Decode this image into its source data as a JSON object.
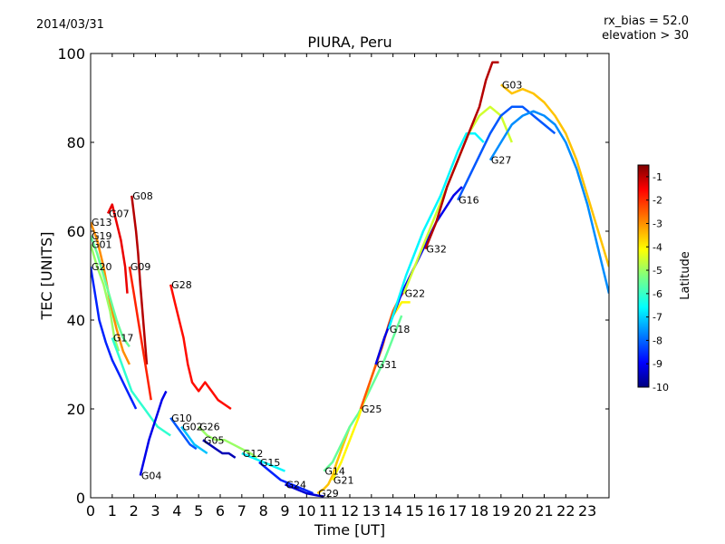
{
  "chart_data": {
    "type": "line",
    "title": "PIURA, Peru",
    "date": "2014/03/31",
    "annotation_lines": [
      "rx_bias = 52.0",
      "elevation > 30"
    ],
    "xlabel": "Time [UT]",
    "ylabel": "TEC [UNITS]",
    "xlim": [
      0,
      24
    ],
    "ylim": [
      0,
      100
    ],
    "x_ticks": [
      0,
      1,
      2,
      3,
      4,
      5,
      6,
      7,
      8,
      9,
      10,
      11,
      12,
      13,
      14,
      15,
      16,
      17,
      18,
      19,
      20,
      21,
      22,
      23
    ],
    "y_ticks": [
      0,
      20,
      40,
      60,
      80,
      100
    ],
    "grid": false,
    "colorbar": {
      "label": "Latitude",
      "min": -10,
      "max": -0.5,
      "ticks": [
        -1,
        -2,
        -3,
        -4,
        -5,
        -6,
        -7,
        -8,
        -9,
        -10
      ]
    },
    "series": [
      {
        "name": "G13",
        "lat": -3.0,
        "points": [
          [
            0.0,
            62
          ],
          [
            0.3,
            58
          ],
          [
            0.6,
            52
          ],
          [
            0.9,
            44
          ],
          [
            1.2,
            38
          ],
          [
            1.5,
            33
          ],
          [
            1.8,
            30
          ]
        ]
      },
      {
        "name": "G07",
        "lat": -1.5,
        "points": [
          [
            0.8,
            64
          ],
          [
            1.0,
            66
          ],
          [
            1.2,
            62
          ],
          [
            1.4,
            58
          ],
          [
            1.6,
            52
          ],
          [
            1.7,
            46
          ]
        ]
      },
      {
        "name": "G08",
        "lat": -1.0,
        "points": [
          [
            1.9,
            68
          ],
          [
            2.0,
            64
          ],
          [
            2.1,
            60
          ],
          [
            2.2,
            55
          ],
          [
            2.3,
            48
          ],
          [
            2.4,
            42
          ],
          [
            2.5,
            36
          ],
          [
            2.6,
            30
          ]
        ]
      },
      {
        "name": "G19",
        "lat": -5.5,
        "points": [
          [
            0.0,
            59
          ],
          [
            0.3,
            55
          ],
          [
            0.6,
            50
          ],
          [
            0.9,
            45
          ],
          [
            1.2,
            40
          ],
          [
            1.5,
            36
          ],
          [
            1.8,
            34
          ]
        ]
      },
      {
        "name": "G01",
        "lat": -5.0,
        "points": [
          [
            0.0,
            57
          ],
          [
            0.3,
            52
          ],
          [
            0.6,
            48
          ],
          [
            0.9,
            42
          ],
          [
            1.1,
            36
          ],
          [
            1.3,
            33
          ]
        ]
      },
      {
        "name": "G20",
        "lat": -8.5,
        "points": [
          [
            0.0,
            52
          ],
          [
            0.2,
            46
          ],
          [
            0.4,
            40
          ],
          [
            0.7,
            35
          ],
          [
            1.0,
            31
          ],
          [
            1.3,
            28
          ],
          [
            1.6,
            25
          ],
          [
            1.9,
            22
          ],
          [
            2.1,
            20
          ]
        ]
      },
      {
        "name": "G09",
        "lat": -2.0,
        "points": [
          [
            1.8,
            52
          ],
          [
            2.0,
            46
          ],
          [
            2.2,
            40
          ],
          [
            2.4,
            34
          ],
          [
            2.6,
            28
          ],
          [
            2.8,
            22
          ]
        ]
      },
      {
        "name": "G28",
        "lat": -1.8,
        "points": [
          [
            3.7,
            48
          ],
          [
            3.9,
            44
          ],
          [
            4.1,
            40
          ],
          [
            4.3,
            36
          ],
          [
            4.5,
            30
          ],
          [
            4.7,
            26
          ],
          [
            5.0,
            24
          ],
          [
            5.3,
            26
          ],
          [
            5.6,
            24
          ],
          [
            5.9,
            22
          ],
          [
            6.2,
            21
          ],
          [
            6.5,
            20
          ]
        ]
      },
      {
        "name": "G17",
        "lat": -6.0,
        "points": [
          [
            1.0,
            36
          ],
          [
            1.3,
            32
          ],
          [
            1.6,
            28
          ],
          [
            1.9,
            24
          ],
          [
            2.2,
            22
          ],
          [
            2.5,
            20
          ],
          [
            2.8,
            18
          ],
          [
            3.1,
            16
          ],
          [
            3.4,
            15
          ],
          [
            3.7,
            14
          ]
        ]
      },
      {
        "name": "G04",
        "lat": -9.0,
        "points": [
          [
            2.3,
            5
          ],
          [
            2.5,
            9
          ],
          [
            2.7,
            13
          ],
          [
            2.9,
            16
          ],
          [
            3.1,
            19
          ],
          [
            3.3,
            22
          ],
          [
            3.5,
            24
          ]
        ]
      },
      {
        "name": "G10",
        "lat": -8.0,
        "points": [
          [
            3.7,
            18
          ],
          [
            4.0,
            16
          ],
          [
            4.3,
            14
          ],
          [
            4.6,
            12
          ],
          [
            4.9,
            11
          ]
        ]
      },
      {
        "name": "G02",
        "lat": -7.0,
        "points": [
          [
            4.2,
            16
          ],
          [
            4.5,
            14
          ],
          [
            4.8,
            12
          ],
          [
            5.1,
            11
          ],
          [
            5.4,
            10
          ]
        ]
      },
      {
        "name": "G05",
        "lat": -9.5,
        "points": [
          [
            5.2,
            13
          ],
          [
            5.5,
            12
          ],
          [
            5.8,
            11
          ],
          [
            6.1,
            10
          ],
          [
            6.4,
            10
          ],
          [
            6.7,
            9
          ]
        ]
      },
      {
        "name": "G26",
        "lat": -5.0,
        "points": [
          [
            5.0,
            16
          ],
          [
            5.4,
            14
          ],
          [
            5.8,
            13
          ],
          [
            6.2,
            13
          ],
          [
            6.6,
            12
          ],
          [
            7.0,
            11
          ],
          [
            7.4,
            10
          ],
          [
            7.7,
            9
          ]
        ]
      },
      {
        "name": "G12",
        "lat": -6.5,
        "points": [
          [
            7.0,
            10
          ],
          [
            7.5,
            9
          ],
          [
            8.0,
            8
          ],
          [
            8.5,
            7
          ],
          [
            9.0,
            6
          ]
        ]
      },
      {
        "name": "G15",
        "lat": -8.5,
        "points": [
          [
            7.8,
            8
          ],
          [
            8.3,
            6
          ],
          [
            8.8,
            4
          ],
          [
            9.3,
            3
          ],
          [
            9.8,
            2
          ],
          [
            10.3,
            1
          ]
        ]
      },
      {
        "name": "G24",
        "lat": -9.2,
        "points": [
          [
            9.0,
            3
          ],
          [
            9.5,
            2
          ],
          [
            10.0,
            1
          ],
          [
            10.5,
            0.5
          ],
          [
            10.8,
            0.3
          ]
        ]
      },
      {
        "name": "G29",
        "lat": -3.5,
        "points": [
          [
            10.5,
            1
          ],
          [
            10.8,
            2
          ],
          [
            11.0,
            3
          ],
          [
            11.2,
            5
          ],
          [
            11.4,
            8
          ],
          [
            11.7,
            12
          ],
          [
            12.0,
            16
          ]
        ]
      },
      {
        "name": "G14",
        "lat": -5.5,
        "points": [
          [
            10.8,
            6
          ],
          [
            11.2,
            8
          ],
          [
            11.6,
            12
          ],
          [
            12.0,
            16
          ],
          [
            12.4,
            19
          ],
          [
            12.8,
            23
          ],
          [
            13.2,
            27
          ],
          [
            13.6,
            31
          ],
          [
            14.0,
            36
          ],
          [
            14.4,
            41
          ]
        ]
      },
      {
        "name": "G21",
        "lat": -4.0,
        "points": [
          [
            11.2,
            4
          ],
          [
            11.6,
            8
          ],
          [
            12.0,
            13
          ],
          [
            12.4,
            18
          ],
          [
            12.8,
            24
          ],
          [
            13.2,
            30
          ],
          [
            13.6,
            36
          ],
          [
            14.0,
            41
          ],
          [
            14.4,
            44
          ],
          [
            14.8,
            44
          ]
        ]
      },
      {
        "name": "G25",
        "lat": -2.5,
        "points": [
          [
            12.5,
            20
          ],
          [
            13.0,
            27
          ],
          [
            13.5,
            34
          ],
          [
            13.8,
            39
          ],
          [
            14.0,
            42
          ],
          [
            14.3,
            45
          ],
          [
            14.6,
            47
          ]
        ]
      },
      {
        "name": "G31",
        "lat": -9.0,
        "points": [
          [
            13.2,
            30
          ],
          [
            13.6,
            36
          ],
          [
            14.0,
            41
          ],
          [
            14.4,
            46
          ],
          [
            14.8,
            50
          ],
          [
            15.2,
            54
          ],
          [
            15.6,
            58
          ],
          [
            16.0,
            62
          ],
          [
            16.4,
            65
          ],
          [
            16.8,
            68
          ],
          [
            17.2,
            70
          ]
        ]
      },
      {
        "name": "G18",
        "lat": -6.5,
        "points": [
          [
            13.8,
            38
          ],
          [
            14.2,
            44
          ],
          [
            14.6,
            50
          ],
          [
            15.0,
            55
          ],
          [
            15.4,
            60
          ],
          [
            15.8,
            64
          ],
          [
            16.2,
            68
          ],
          [
            16.6,
            73
          ],
          [
            17.0,
            78
          ],
          [
            17.4,
            82
          ],
          [
            17.8,
            82
          ],
          [
            18.2,
            80
          ]
        ]
      },
      {
        "name": "G22",
        "lat": -4.5,
        "points": [
          [
            14.5,
            46
          ],
          [
            15.0,
            52
          ],
          [
            15.5,
            58
          ],
          [
            16.0,
            64
          ],
          [
            16.5,
            70
          ],
          [
            17.0,
            76
          ],
          [
            17.5,
            82
          ],
          [
            18.0,
            86
          ],
          [
            18.5,
            88
          ],
          [
            19.0,
            86
          ],
          [
            19.5,
            80
          ]
        ]
      },
      {
        "name": "G16",
        "lat": -8.0,
        "points": [
          [
            17.0,
            67
          ],
          [
            17.5,
            72
          ],
          [
            18.0,
            77
          ],
          [
            18.5,
            82
          ],
          [
            19.0,
            86
          ],
          [
            19.5,
            88
          ],
          [
            20.0,
            88
          ],
          [
            20.5,
            86
          ],
          [
            21.0,
            84
          ],
          [
            21.5,
            82
          ]
        ]
      },
      {
        "name": "G32",
        "lat": -1.0,
        "points": [
          [
            15.5,
            56
          ],
          [
            16.0,
            62
          ],
          [
            16.5,
            70
          ],
          [
            17.0,
            76
          ],
          [
            17.5,
            82
          ],
          [
            18.0,
            88
          ],
          [
            18.3,
            94
          ],
          [
            18.6,
            98
          ],
          [
            18.9,
            98
          ]
        ]
      },
      {
        "name": "G27",
        "lat": -7.5,
        "points": [
          [
            18.5,
            76
          ],
          [
            19.0,
            80
          ],
          [
            19.5,
            84
          ],
          [
            20.0,
            86
          ],
          [
            20.5,
            87
          ],
          [
            21.0,
            86
          ],
          [
            21.5,
            84
          ],
          [
            22.0,
            80
          ],
          [
            22.5,
            74
          ],
          [
            23.0,
            66
          ],
          [
            23.5,
            56
          ],
          [
            24.0,
            46
          ]
        ]
      },
      {
        "name": "G03",
        "lat": -3.5,
        "points": [
          [
            19.0,
            93
          ],
          [
            19.5,
            91
          ],
          [
            20.0,
            92
          ],
          [
            20.5,
            91
          ],
          [
            21.0,
            89
          ],
          [
            21.5,
            86
          ],
          [
            22.0,
            82
          ],
          [
            22.5,
            76
          ],
          [
            23.0,
            68
          ],
          [
            23.5,
            60
          ],
          [
            24.0,
            52
          ]
        ]
      }
    ]
  }
}
